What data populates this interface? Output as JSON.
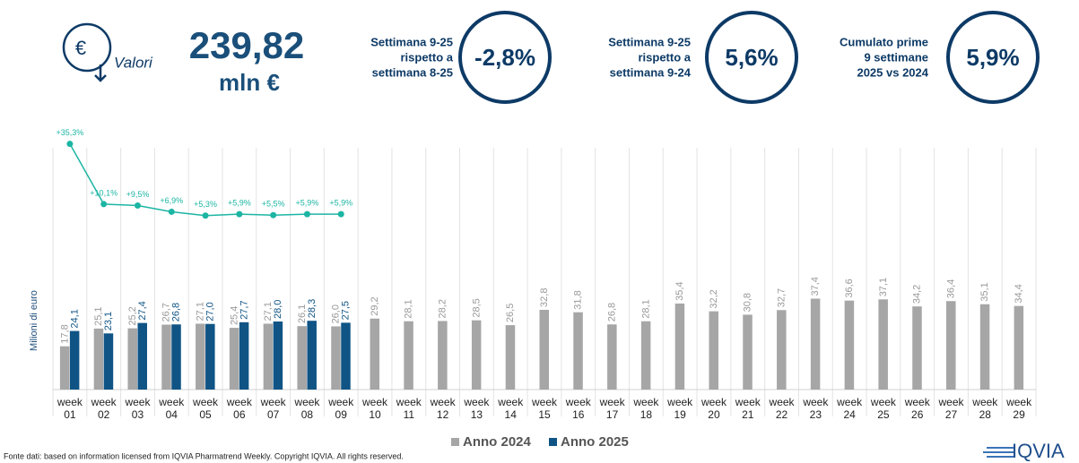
{
  "header": {
    "icon": "€",
    "metric_label": "Valori",
    "value": "239,82",
    "unit": "mln €",
    "kpis": [
      {
        "lines": [
          "Settimana 9-25",
          "rispetto a",
          "settimana 8-25"
        ],
        "value": "-2,8%"
      },
      {
        "lines": [
          "Settimana 9-25",
          "rispetto a",
          "settimana 9-24"
        ],
        "value": "5,6%"
      },
      {
        "lines": [
          "Cumulato prime",
          "9 settimane",
          "2025 vs 2024"
        ],
        "value": "5,9%"
      }
    ]
  },
  "chart_data": {
    "type": "bar",
    "y_label": "Milioni di euro",
    "categories": [
      "week 01",
      "week 02",
      "week 03",
      "week 04",
      "week 05",
      "week 06",
      "week 07",
      "week 08",
      "week 09",
      "week 10",
      "week 11",
      "week 12",
      "week 13",
      "week 14",
      "week 15",
      "week 16",
      "week 17",
      "week 18",
      "week 19",
      "week 20",
      "week 21",
      "week 22",
      "week 23",
      "week 24",
      "week 25",
      "week 26",
      "week 27",
      "week 28",
      "week 29"
    ],
    "ylim": [
      0,
      105
    ],
    "y2lim": [
      -67.5,
      39.3
    ],
    "grid": true,
    "legend": "bottom",
    "series": [
      {
        "name": "Anno 2024",
        "color": "#a6a6a6",
        "values": [
          17.8,
          25.1,
          25.2,
          26.7,
          27.1,
          25.4,
          27.1,
          26.1,
          26.0,
          29.2,
          28.1,
          28.2,
          28.5,
          26.5,
          32.8,
          31.8,
          26.8,
          28.1,
          35.4,
          32.2,
          30.8,
          32.7,
          37.4,
          36.6,
          37.1,
          34.2,
          36.4,
          35.1,
          34.4
        ],
        "value_labels": [
          "17,8",
          "25,1",
          "25,2",
          "26,7",
          "27,1",
          "25,4",
          "27,1",
          "26,1",
          "26,0",
          "29,2",
          "28,1",
          "28,2",
          "28,5",
          "26,5",
          "32,8",
          "31,8",
          "26,8",
          "28,1",
          "35,4",
          "32,2",
          "30,8",
          "32,7",
          "37,4",
          "36,6",
          "37,1",
          "34,2",
          "36,4",
          "35,1",
          "34,4"
        ]
      },
      {
        "name": "Anno 2025",
        "color": "#0f5485",
        "values": [
          24.1,
          23.1,
          27.4,
          26.8,
          27.0,
          27.7,
          28.0,
          28.3,
          27.5,
          null,
          null,
          null,
          null,
          null,
          null,
          null,
          null,
          null,
          null,
          null,
          null,
          null,
          null,
          null,
          null,
          null,
          null,
          null,
          null
        ],
        "value_labels": [
          "24,1",
          "23,1",
          "27,4",
          "26,8",
          "27,0",
          "27,7",
          "28,0",
          "28,3",
          "27,5",
          null,
          null,
          null,
          null,
          null,
          null,
          null,
          null,
          null,
          null,
          null,
          null,
          null,
          null,
          null,
          null,
          null,
          null,
          null,
          null
        ]
      },
      {
        "type": "line",
        "axis": "y2",
        "color": "#1cb5a3",
        "values": [
          35.3,
          10.1,
          9.5,
          6.9,
          5.3,
          5.9,
          5.5,
          5.9,
          5.9,
          null,
          null,
          null,
          null,
          null,
          null,
          null,
          null,
          null,
          null,
          null,
          null,
          null,
          null,
          null,
          null,
          null,
          null,
          null,
          null
        ],
        "value_labels": [
          "+35,3%",
          "+10,1%",
          "+9,5%",
          "+6,9%",
          "+5,3%",
          "+5,9%",
          "+5,5%",
          "+5,9%",
          "+5,9%",
          null,
          null,
          null,
          null,
          null,
          null,
          null,
          null,
          null,
          null,
          null,
          null,
          null,
          null,
          null,
          null,
          null,
          null,
          null,
          null
        ]
      }
    ]
  },
  "footer": {
    "source": "Fonte dati: based on information licensed from IQVIA Pharmatrend Weekly. Copyright IQVIA. All rights reserved.",
    "logo": "IQVIA"
  }
}
